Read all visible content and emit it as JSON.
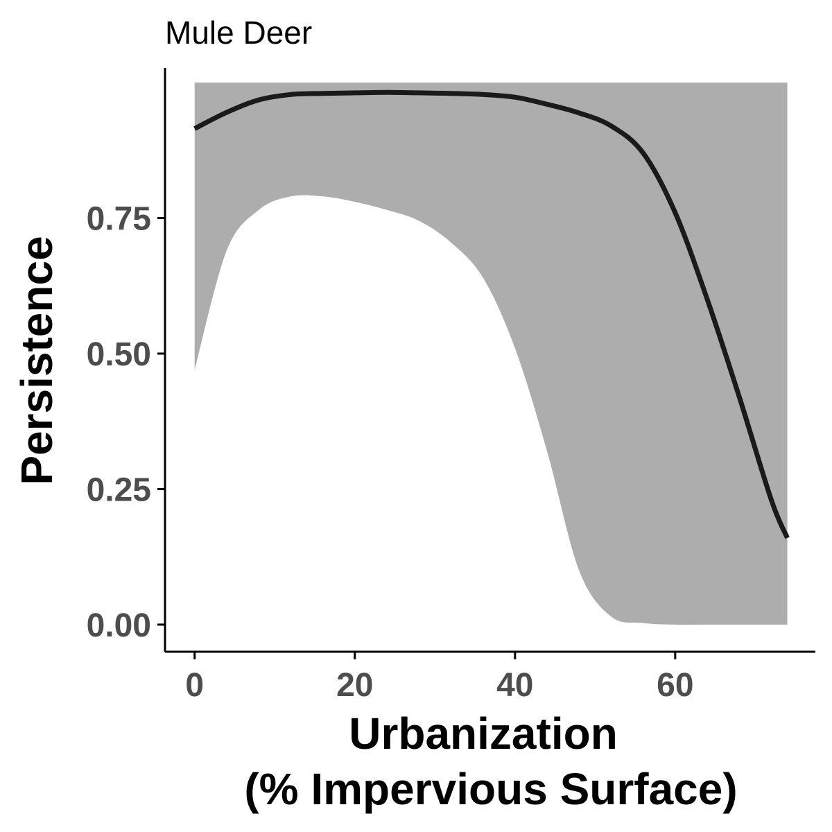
{
  "chart_data": {
    "type": "line",
    "title": "Mule Deer",
    "xlabel_line1": "Urbanization",
    "xlabel_line2": "(% Impervious Surface)",
    "ylabel": "Persistence",
    "xlim": [
      -3.7,
      77.5
    ],
    "ylim": [
      -0.05,
      1.05
    ],
    "x_ticks": [
      0,
      20,
      40,
      60
    ],
    "x_tick_labels": [
      "0",
      "20",
      "40",
      "60"
    ],
    "y_ticks": [
      0,
      0.25,
      0.5,
      0.75
    ],
    "y_tick_labels": [
      "0.00",
      "0.25",
      "0.50",
      "0.75"
    ],
    "grid": false,
    "colors": {
      "line": "#1a1a1a",
      "ribbon": "#adadad",
      "axis": "#000000",
      "tick_label": "#4d4d4d"
    },
    "series": [
      {
        "x": [
          0,
          4,
          8,
          12,
          16,
          20,
          24,
          28,
          32,
          36,
          40,
          44,
          48,
          52,
          56,
          60,
          64,
          68,
          72,
          74
        ],
        "y": [
          0.915,
          0.945,
          0.968,
          0.978,
          0.98,
          0.981,
          0.982,
          0.981,
          0.98,
          0.978,
          0.973,
          0.96,
          0.944,
          0.92,
          0.87,
          0.76,
          0.6,
          0.42,
          0.23,
          0.16
        ],
        "lower": [
          0.47,
          0.69,
          0.765,
          0.79,
          0.79,
          0.78,
          0.765,
          0.745,
          0.705,
          0.64,
          0.51,
          0.32,
          0.1,
          0.015,
          0.003,
          0.0,
          0.0,
          0.0,
          0.0,
          0.0
        ],
        "upper": [
          1.0,
          1.0,
          1.0,
          1.0,
          1.0,
          1.0,
          1.0,
          1.0,
          1.0,
          1.0,
          1.0,
          1.0,
          1.0,
          1.0,
          1.0,
          1.0,
          1.0,
          1.0,
          1.0,
          1.0
        ]
      }
    ]
  }
}
